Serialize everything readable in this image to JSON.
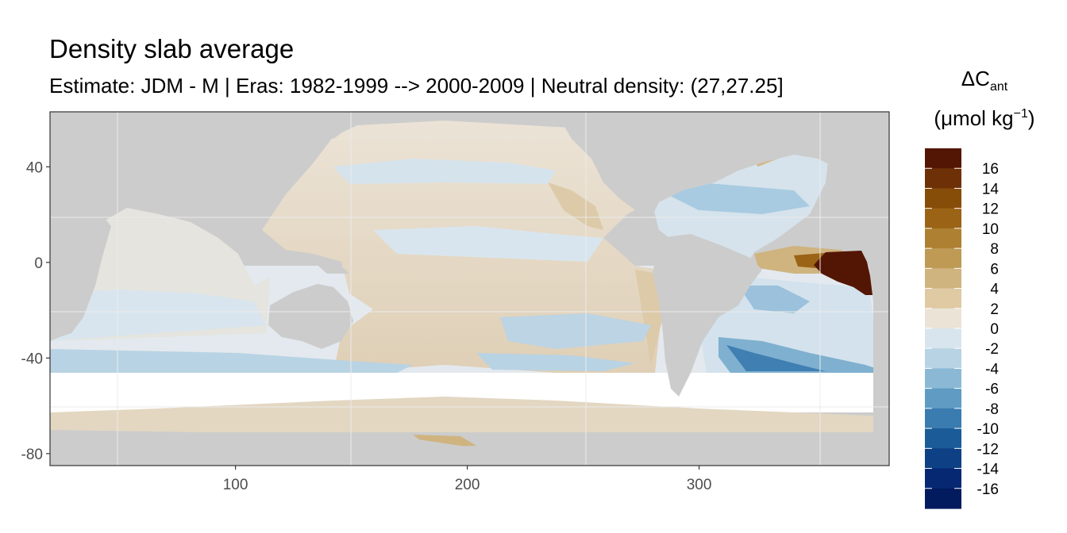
{
  "title": "Density slab average",
  "subtitle": "Estimate: JDM - M | Eras: 1982-1999 --> 2000-2009 | Neutral density: (27,27.25]",
  "legend": {
    "title_main": "ΔC",
    "title_sub": "ant",
    "unit_open": "(μmol kg",
    "unit_sup": "−1",
    "unit_close": ")",
    "labels": [
      "16",
      "14",
      "12",
      "10",
      "8",
      "6",
      "4",
      "2",
      "0",
      "-2",
      "-4",
      "-6",
      "-8",
      "-10",
      "-12",
      "-14",
      "-16"
    ],
    "colors": [
      "#541604",
      "#6e3007",
      "#864d09",
      "#9b6315",
      "#ae8032",
      "#be9a55",
      "#cfb480",
      "#dfcaa4",
      "#ebe3d6",
      "#d9e5ee",
      "#b8d3e4",
      "#8bb9d5",
      "#5f9bc3",
      "#3a7bb0",
      "#1b5b97",
      "#0e4085",
      "#062872",
      "#021a5e"
    ]
  },
  "chart_data": {
    "type": "map",
    "xlim": [
      20,
      382
    ],
    "ylim": [
      -85,
      63
    ],
    "x_ticks": [
      100,
      200,
      300
    ],
    "y_ticks": [
      40,
      0,
      -40,
      -80
    ],
    "grid": true,
    "land_color": "#cccccc",
    "missing_color": "#ffffff",
    "legend_position": "right",
    "fill_variable": "Cant change"
  }
}
